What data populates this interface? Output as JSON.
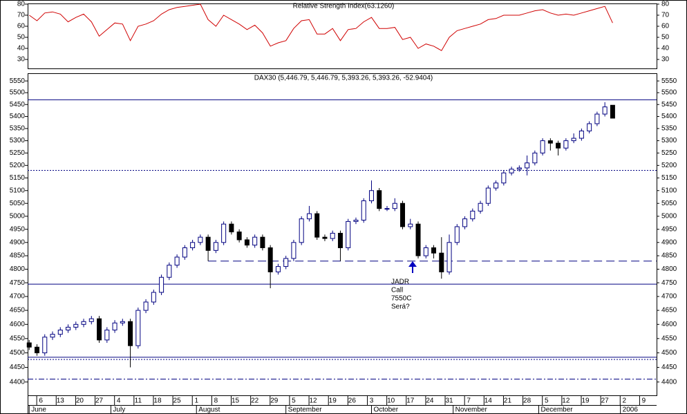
{
  "chart_data": [
    {
      "type": "line",
      "title": "Relative Strength Index(63.1260)",
      "color": "#d00000",
      "x": [
        0,
        2,
        4,
        6,
        8,
        10,
        12,
        14,
        16,
        18,
        20,
        22,
        24,
        26,
        28,
        30,
        32,
        34,
        36,
        38,
        40,
        42,
        44,
        46,
        48,
        50,
        52,
        54,
        56,
        58,
        60,
        62,
        64,
        66,
        68,
        70,
        72,
        74,
        76,
        78,
        80,
        82,
        84,
        86,
        88,
        90,
        92,
        94,
        96,
        98,
        100,
        102,
        104,
        106,
        108,
        110,
        112,
        114,
        116,
        118,
        120,
        122,
        124,
        126,
        128,
        130,
        132,
        134,
        136,
        138,
        140,
        142,
        144,
        146,
        148,
        150
      ],
      "values": [
        70,
        65,
        72,
        73,
        71,
        64,
        68,
        71,
        64,
        51,
        57,
        63,
        62,
        47,
        60,
        62,
        65,
        71,
        75,
        77,
        78,
        79,
        80,
        66,
        60,
        70,
        66,
        62,
        57,
        61,
        54,
        42,
        45,
        47,
        58,
        65,
        66,
        53,
        53,
        58,
        47,
        57,
        58,
        64,
        68,
        58,
        58,
        59,
        48,
        50,
        40,
        44,
        42,
        38,
        50,
        56,
        58,
        60,
        62,
        66,
        67,
        70,
        70,
        70,
        72,
        74,
        75,
        72,
        70,
        71,
        70,
        72,
        74,
        76,
        78,
        63
      ],
      "xlim": [
        -0.4,
        161.3
      ],
      "ylim": [
        21.9,
        80.6
      ],
      "yticks": [
        30,
        40,
        50,
        60,
        70,
        80
      ]
    },
    {
      "type": "candlestick",
      "title": "DAX30 (5,446.79, 5,446.79, 5,393.26, 5,393.26, -52.9404)",
      "up_color": "#ffffff",
      "down_color": "#000000",
      "edge_color": "#000080",
      "log_y": true,
      "x": [
        0,
        2,
        4,
        6,
        8,
        10,
        12,
        14,
        16,
        18,
        20,
        22,
        24,
        26,
        28,
        30,
        32,
        34,
        36,
        38,
        40,
        42,
        44,
        46,
        48,
        50,
        52,
        54,
        56,
        58,
        60,
        62,
        64,
        66,
        68,
        70,
        72,
        74,
        76,
        78,
        80,
        82,
        84,
        86,
        88,
        90,
        92,
        94,
        96,
        98,
        100,
        102,
        104,
        106,
        108,
        110,
        112,
        114,
        116,
        118,
        120,
        122,
        124,
        126,
        128,
        130,
        132,
        134,
        136,
        138,
        140,
        142,
        144,
        146,
        148,
        150
      ],
      "open": [
        4535,
        4520,
        4500,
        4555,
        4565,
        4580,
        4590,
        4600,
        4610,
        4620,
        4545,
        4580,
        4605,
        4610,
        4525,
        4650,
        4680,
        4715,
        4770,
        4815,
        4845,
        4880,
        4900,
        4920,
        4870,
        4900,
        4970,
        4940,
        4910,
        4890,
        4920,
        4880,
        4790,
        4810,
        4840,
        4900,
        4990,
        5010,
        4920,
        4915,
        4935,
        4880,
        4980,
        4985,
        5060,
        5100,
        5030,
        5030,
        5050,
        4960,
        4970,
        4850,
        4880,
        4860,
        4790,
        4900,
        4960,
        4990,
        5020,
        5050,
        5110,
        5130,
        5170,
        5185,
        5190,
        5210,
        5250,
        5300,
        5290,
        5270,
        5300,
        5310,
        5340,
        5370,
        5410,
        5447
      ],
      "high": [
        4545,
        4530,
        4565,
        4575,
        4590,
        4600,
        4610,
        4620,
        4630,
        4630,
        4590,
        4615,
        4620,
        4620,
        4660,
        4690,
        4725,
        4780,
        4825,
        4855,
        4890,
        4910,
        4930,
        4930,
        4910,
        4980,
        4980,
        4950,
        4920,
        4930,
        4930,
        4890,
        4820,
        4850,
        4910,
        5000,
        5040,
        5020,
        4930,
        4945,
        4945,
        4990,
        4995,
        5070,
        5140,
        5110,
        5040,
        5070,
        5060,
        4990,
        4980,
        4890,
        4890,
        4920,
        4930,
        4970,
        5000,
        5030,
        5060,
        5120,
        5140,
        5180,
        5195,
        5200,
        5240,
        5260,
        5310,
        5310,
        5300,
        5310,
        5330,
        5350,
        5380,
        5420,
        5460,
        5447
      ],
      "low": [
        4510,
        4490,
        4490,
        4545,
        4555,
        4570,
        4580,
        4590,
        4600,
        4535,
        4535,
        4570,
        4595,
        4450,
        4515,
        4640,
        4670,
        4705,
        4760,
        4805,
        4835,
        4870,
        4890,
        4830,
        4860,
        4890,
        4930,
        4900,
        4880,
        4880,
        4870,
        4730,
        4780,
        4800,
        4830,
        4890,
        4980,
        4910,
        4905,
        4905,
        4830,
        4870,
        4970,
        4975,
        5050,
        5020,
        5020,
        5020,
        4950,
        4950,
        4840,
        4840,
        4840,
        4765,
        4780,
        4890,
        4950,
        4980,
        5010,
        5040,
        5100,
        5120,
        5160,
        5175,
        5160,
        5200,
        5240,
        5260,
        5240,
        5260,
        5290,
        5300,
        5330,
        5360,
        5400,
        5393
      ],
      "close": [
        4520,
        4500,
        4555,
        4565,
        4580,
        4590,
        4600,
        4610,
        4620,
        4545,
        4580,
        4605,
        4610,
        4525,
        4650,
        4680,
        4715,
        4770,
        4815,
        4845,
        4880,
        4900,
        4920,
        4870,
        4900,
        4970,
        4940,
        4910,
        4890,
        4920,
        4880,
        4790,
        4810,
        4840,
        4900,
        4990,
        5010,
        4920,
        4915,
        4935,
        4880,
        4980,
        4985,
        5060,
        5100,
        5030,
        5030,
        5050,
        4960,
        4970,
        4850,
        4880,
        4860,
        4790,
        4900,
        4960,
        4990,
        5020,
        5050,
        5110,
        5130,
        5170,
        5185,
        5190,
        5210,
        5250,
        5300,
        5290,
        5270,
        5300,
        5310,
        5340,
        5370,
        5410,
        5440,
        5393
      ],
      "xlim": [
        -0.4,
        161.3
      ],
      "ylim": [
        4355,
        5583
      ],
      "yticks": [
        4400,
        4450,
        4500,
        4550,
        4600,
        4650,
        4700,
        4750,
        4800,
        4850,
        4900,
        4950,
        5000,
        5050,
        5100,
        5150,
        5200,
        5250,
        5300,
        5350,
        5400,
        5450,
        5500,
        5550
      ],
      "xticks": [
        {
          "value": 3,
          "label": "6"
        },
        {
          "value": 8,
          "label": "13"
        },
        {
          "value": 13,
          "label": "20"
        },
        {
          "value": 18,
          "label": "27"
        },
        {
          "value": 23,
          "label": "4"
        },
        {
          "value": 28,
          "label": "11"
        },
        {
          "value": 33,
          "label": "18"
        },
        {
          "value": 38,
          "label": "25"
        },
        {
          "value": 43,
          "label": "1"
        },
        {
          "value": 48,
          "label": "8"
        },
        {
          "value": 53,
          "label": "15"
        },
        {
          "value": 58,
          "label": "22"
        },
        {
          "value": 63,
          "label": "29"
        },
        {
          "value": 68,
          "label": "5"
        },
        {
          "value": 73,
          "label": "12"
        },
        {
          "value": 78,
          "label": "19"
        },
        {
          "value": 83,
          "label": "26"
        },
        {
          "value": 88,
          "label": "3"
        },
        {
          "value": 93,
          "label": "10"
        },
        {
          "value": 98,
          "label": "17"
        },
        {
          "value": 103,
          "label": "24"
        },
        {
          "value": 108,
          "label": "31"
        },
        {
          "value": 113,
          "label": "7"
        },
        {
          "value": 118,
          "label": "14"
        },
        {
          "value": 123,
          "label": "21"
        },
        {
          "value": 128,
          "label": "28"
        },
        {
          "value": 133,
          "label": "5"
        },
        {
          "value": 138,
          "label": "12"
        },
        {
          "value": 143,
          "label": "19"
        },
        {
          "value": 148,
          "label": "27"
        },
        {
          "value": 153,
          "label": "2"
        },
        {
          "value": 158,
          "label": "9"
        }
      ],
      "month_ticks": [
        {
          "value": 0,
          "label": "June"
        },
        {
          "value": 21,
          "label": "July"
        },
        {
          "value": 43,
          "label": "August"
        },
        {
          "value": 66,
          "label": "September"
        },
        {
          "value": 88,
          "label": "October"
        },
        {
          "value": 109,
          "label": "November"
        },
        {
          "value": 131,
          "label": "December"
        },
        {
          "value": 152,
          "label": "2006"
        }
      ],
      "hlines": [
        {
          "value": 5470,
          "style": "solid",
          "color": "#000080"
        },
        {
          "value": 5180,
          "style": "dotted",
          "color": "#000080"
        },
        {
          "value": 4830,
          "style": "dashed",
          "color": "#000080"
        },
        {
          "value": 4745,
          "style": "solid",
          "color": "#000080"
        },
        {
          "value": 4485,
          "style": "solid",
          "color": "#000080"
        },
        {
          "value": 4477,
          "style": "dotted",
          "color": "#000080"
        },
        {
          "value": 4410,
          "style": "dashdot",
          "color": "#000080"
        }
      ],
      "annotation": [
        "JADR",
        "Call",
        "7550C",
        "Será?"
      ],
      "annotation_color": "#0000c0"
    }
  ]
}
